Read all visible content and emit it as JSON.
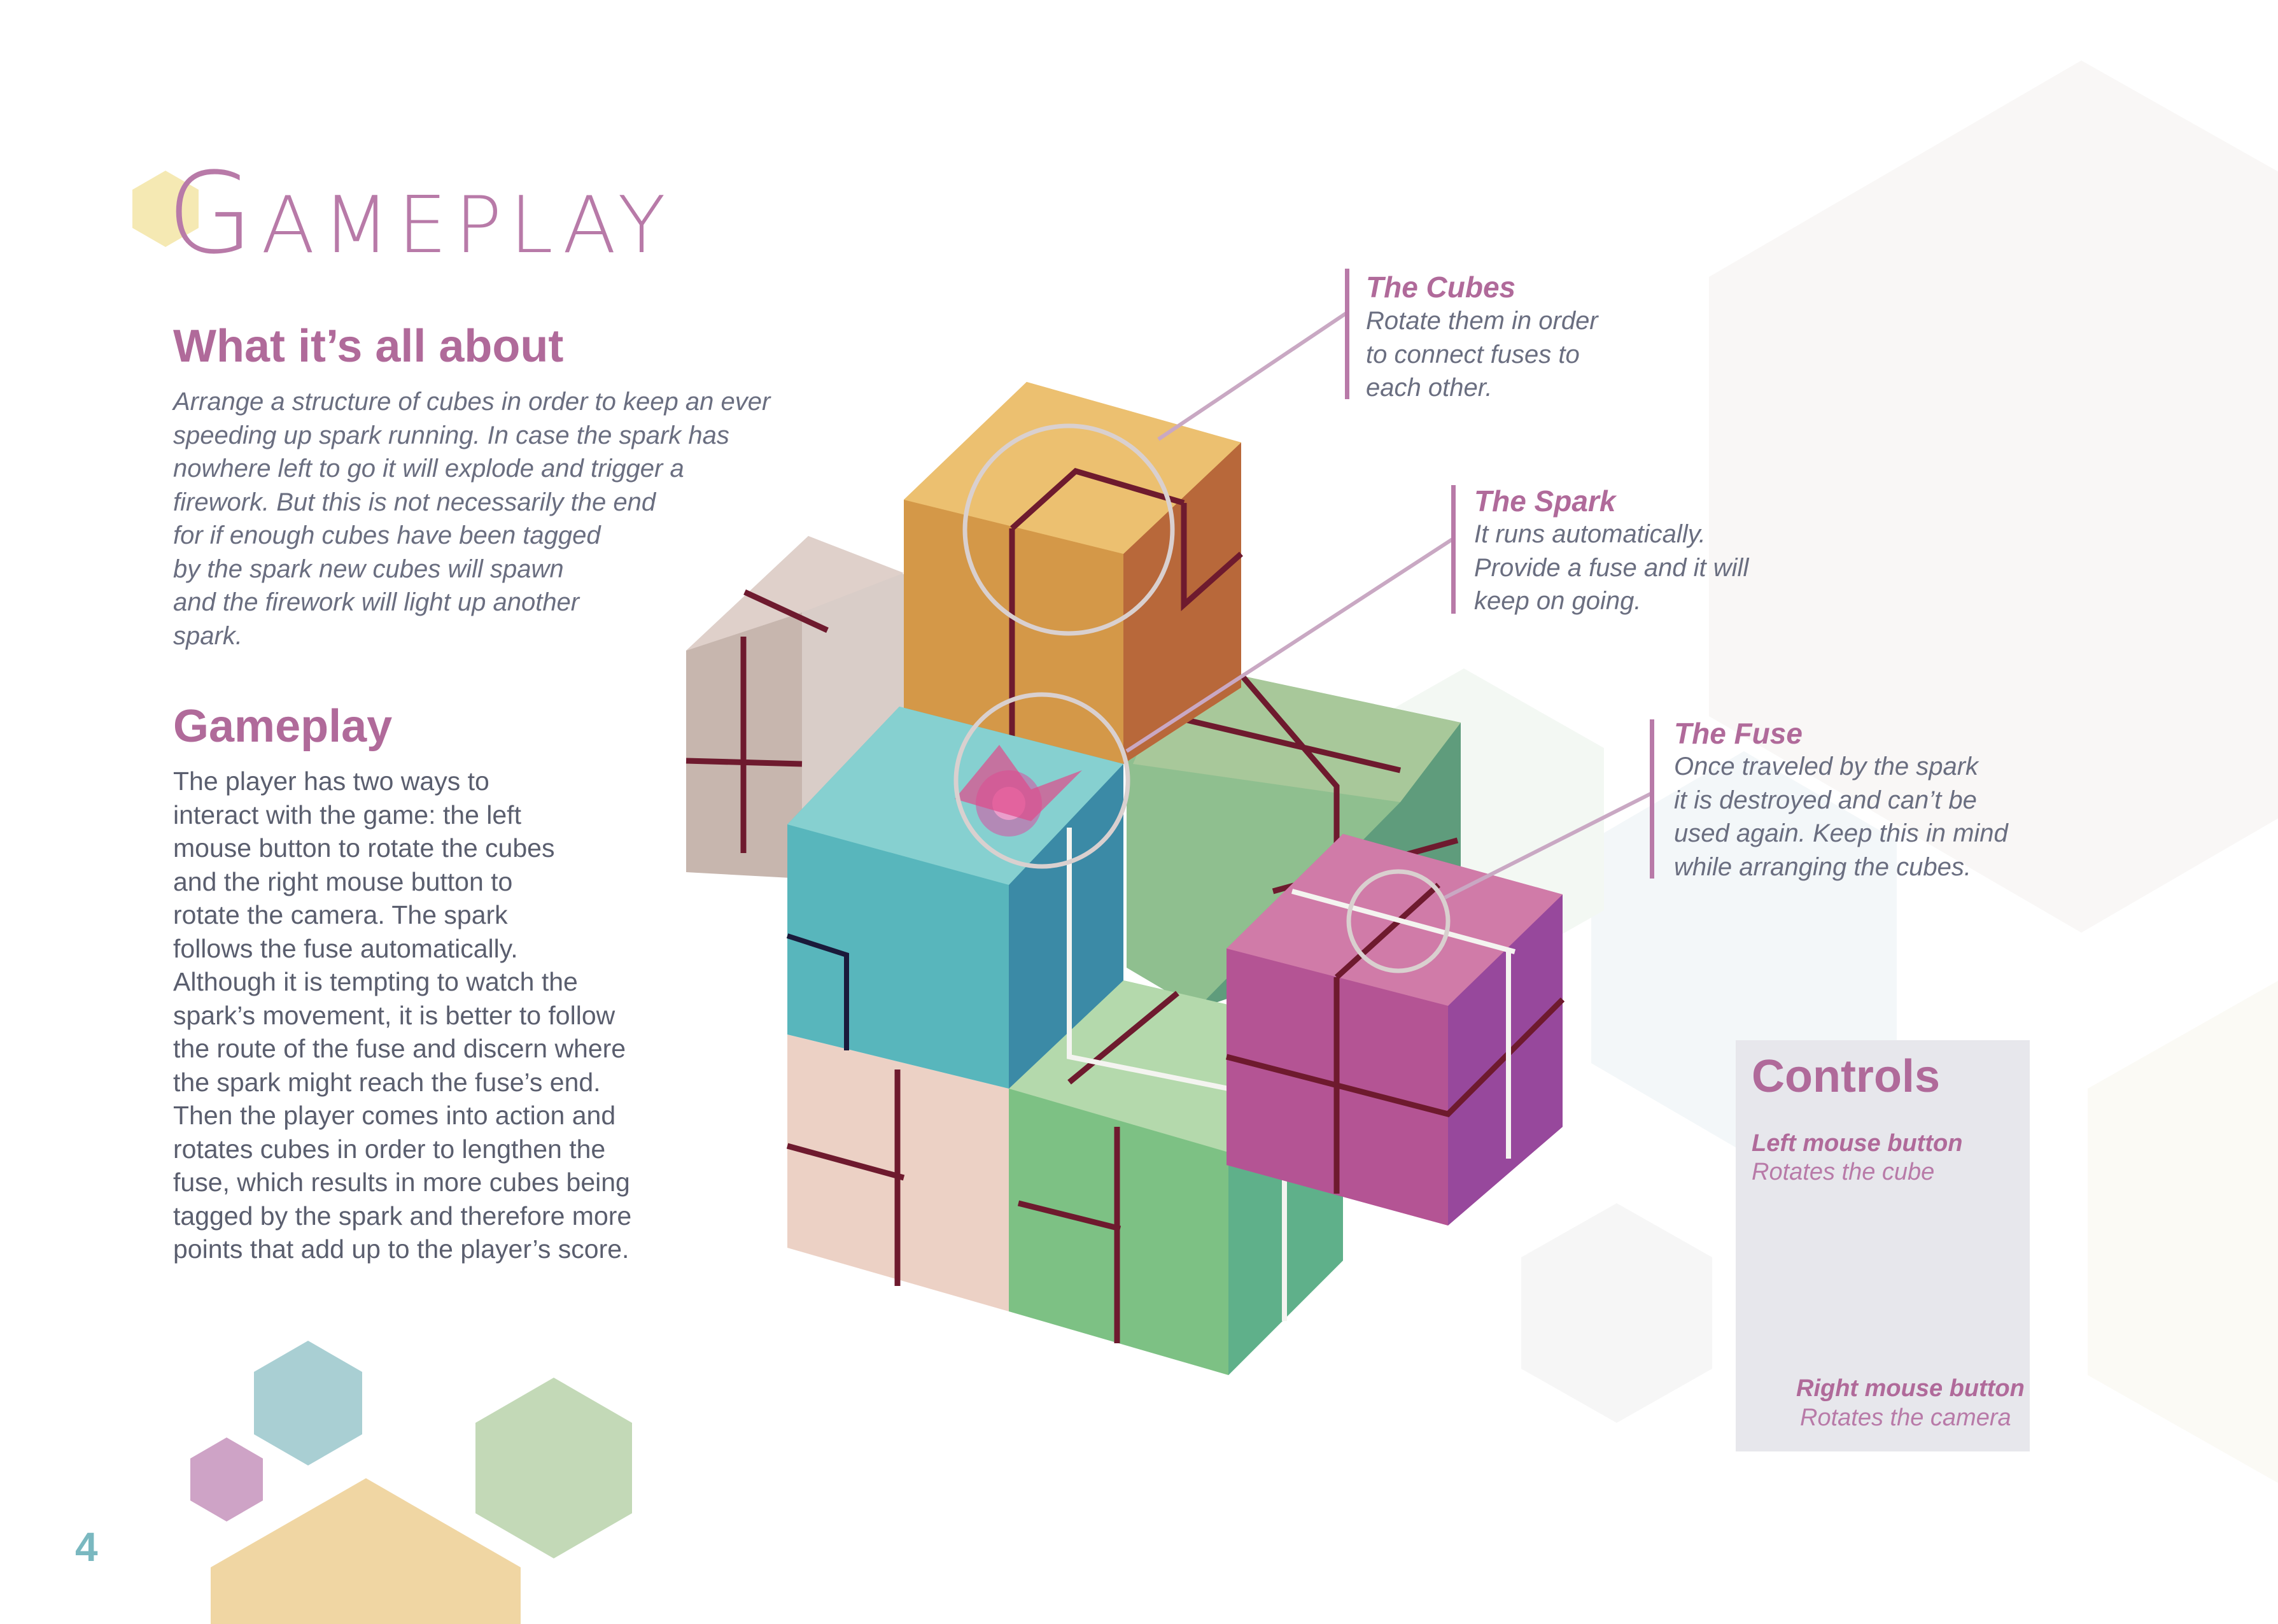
{
  "page_title": "Gameplay",
  "sections": {
    "about": {
      "heading": "What it’s all about",
      "body": "Arrange a structure of cubes in order to keep an ever\nspeeding up spark running. In case the spark has\nnowhere left to go it will explode and trigger a\nfirework. But this is not necessarily the end\nfor if enough cubes have been tagged\nby the spark new cubes will spawn\nand the firework will light up another\nspark."
    },
    "gameplay": {
      "heading": "Gameplay",
      "body": "The player has two ways to\ninteract with the game: the left\nmouse button to rotate the cubes\nand the right mouse button to\nrotate the camera. The spark\nfollows the fuse automatically.\nAlthough it is tempting to watch the\nspark’s movement, it is better to follow\nthe route of the fuse and discern where\nthe spark might reach the fuse’s end.\nThen the player comes into action and\nrotates cubes in order to lengthen the\nfuse, which results in more cubes being\ntagged by the spark and therefore more\npoints that add up to the player’s score."
    }
  },
  "callouts": {
    "cubes": {
      "title": "The Cubes",
      "text": "Rotate them in order\nto connect fuses to\neach other."
    },
    "spark": {
      "title": "The Spark",
      "text": "It runs automatically.\nProvide a fuse and it will\nkeep on going."
    },
    "fuse": {
      "title": "The Fuse",
      "text": "Once traveled by the spark\nit is destroyed and can’t be\nused again. Keep this in mind\nwhile arranging the cubes."
    }
  },
  "controls": {
    "heading": "Controls",
    "left_label": "Left mouse button",
    "left_action": "Rotates the cube",
    "right_label": "Right mouse button",
    "right_action": "Rotates the camera"
  },
  "page_number": "4",
  "colors": {
    "accent": "#b06a9a",
    "text": "#5a5e6e",
    "cube_orange": "#e8b865",
    "cube_beige": "#d8c5be",
    "cube_teal": "#5bbfc4",
    "cube_green": "#8ec49a",
    "cube_peach": "#ecd0c4",
    "cube_magenta": "#c8609f",
    "fuse": "#6e1a2e"
  }
}
